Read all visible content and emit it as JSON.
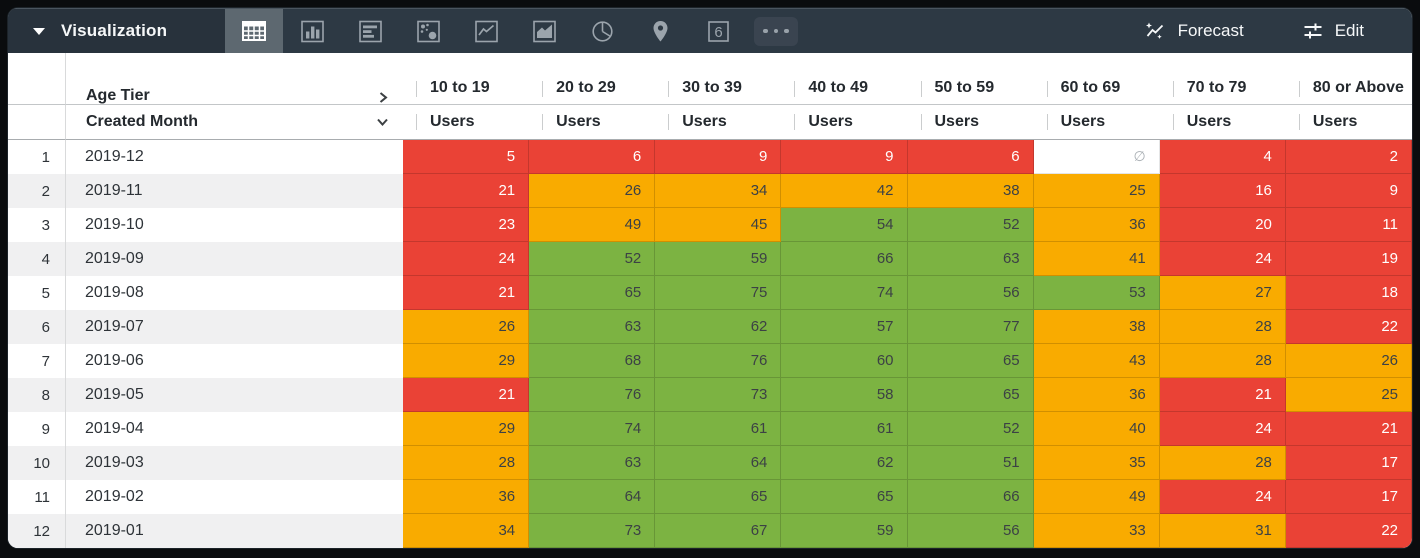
{
  "toolbar": {
    "title": "Visualization",
    "viz_types": [
      {
        "name": "table",
        "active": true
      },
      {
        "name": "bar",
        "active": false
      },
      {
        "name": "row-bar",
        "active": false
      },
      {
        "name": "scatter",
        "active": false
      },
      {
        "name": "line",
        "active": false
      },
      {
        "name": "area",
        "active": false
      },
      {
        "name": "pie",
        "active": false
      },
      {
        "name": "map",
        "active": false
      },
      {
        "name": "single-value",
        "active": false
      },
      {
        "name": "more",
        "active": false
      }
    ],
    "single_value_glyph": "6",
    "forecast_label": "Forecast",
    "edit_label": "Edit"
  },
  "table": {
    "pivot_field": "Age Tier",
    "row_field": "Created Month",
    "measure_label": "Users",
    "columns": [
      "10 to 19",
      "20 to 29",
      "30 to 39",
      "40 to 49",
      "50 to 59",
      "60 to 69",
      "70 to 79",
      "80 or Above"
    ],
    "null_symbol": "∅",
    "colors": {
      "red": "#EA4236",
      "orange": "#F9AB00",
      "green": "#7CB342",
      "null": "#FFFFFF"
    },
    "rows": [
      {
        "index": 1,
        "month": "2019-12",
        "cells": [
          {
            "v": "5",
            "c": "red"
          },
          {
            "v": "6",
            "c": "red"
          },
          {
            "v": "9",
            "c": "red"
          },
          {
            "v": "9",
            "c": "red"
          },
          {
            "v": "6",
            "c": "red"
          },
          {
            "v": null,
            "c": "null"
          },
          {
            "v": "4",
            "c": "red"
          },
          {
            "v": "2",
            "c": "red"
          }
        ]
      },
      {
        "index": 2,
        "month": "2019-11",
        "cells": [
          {
            "v": "21",
            "c": "red"
          },
          {
            "v": "26",
            "c": "orange"
          },
          {
            "v": "34",
            "c": "orange"
          },
          {
            "v": "42",
            "c": "orange"
          },
          {
            "v": "38",
            "c": "orange"
          },
          {
            "v": "25",
            "c": "orange"
          },
          {
            "v": "16",
            "c": "red"
          },
          {
            "v": "9",
            "c": "red"
          }
        ]
      },
      {
        "index": 3,
        "month": "2019-10",
        "cells": [
          {
            "v": "23",
            "c": "red"
          },
          {
            "v": "49",
            "c": "orange"
          },
          {
            "v": "45",
            "c": "orange"
          },
          {
            "v": "54",
            "c": "green"
          },
          {
            "v": "52",
            "c": "green"
          },
          {
            "v": "36",
            "c": "orange"
          },
          {
            "v": "20",
            "c": "red"
          },
          {
            "v": "11",
            "c": "red"
          }
        ]
      },
      {
        "index": 4,
        "month": "2019-09",
        "cells": [
          {
            "v": "24",
            "c": "red"
          },
          {
            "v": "52",
            "c": "green"
          },
          {
            "v": "59",
            "c": "green"
          },
          {
            "v": "66",
            "c": "green"
          },
          {
            "v": "63",
            "c": "green"
          },
          {
            "v": "41",
            "c": "orange"
          },
          {
            "v": "24",
            "c": "red"
          },
          {
            "v": "19",
            "c": "red"
          }
        ]
      },
      {
        "index": 5,
        "month": "2019-08",
        "cells": [
          {
            "v": "21",
            "c": "red"
          },
          {
            "v": "65",
            "c": "green"
          },
          {
            "v": "75",
            "c": "green"
          },
          {
            "v": "74",
            "c": "green"
          },
          {
            "v": "56",
            "c": "green"
          },
          {
            "v": "53",
            "c": "green"
          },
          {
            "v": "27",
            "c": "orange"
          },
          {
            "v": "18",
            "c": "red"
          }
        ]
      },
      {
        "index": 6,
        "month": "2019-07",
        "cells": [
          {
            "v": "26",
            "c": "orange"
          },
          {
            "v": "63",
            "c": "green"
          },
          {
            "v": "62",
            "c": "green"
          },
          {
            "v": "57",
            "c": "green"
          },
          {
            "v": "77",
            "c": "green"
          },
          {
            "v": "38",
            "c": "orange"
          },
          {
            "v": "28",
            "c": "orange"
          },
          {
            "v": "22",
            "c": "red"
          }
        ]
      },
      {
        "index": 7,
        "month": "2019-06",
        "cells": [
          {
            "v": "29",
            "c": "orange"
          },
          {
            "v": "68",
            "c": "green"
          },
          {
            "v": "76",
            "c": "green"
          },
          {
            "v": "60",
            "c": "green"
          },
          {
            "v": "65",
            "c": "green"
          },
          {
            "v": "43",
            "c": "orange"
          },
          {
            "v": "28",
            "c": "orange"
          },
          {
            "v": "26",
            "c": "orange"
          }
        ]
      },
      {
        "index": 8,
        "month": "2019-05",
        "cells": [
          {
            "v": "21",
            "c": "red"
          },
          {
            "v": "76",
            "c": "green"
          },
          {
            "v": "73",
            "c": "green"
          },
          {
            "v": "58",
            "c": "green"
          },
          {
            "v": "65",
            "c": "green"
          },
          {
            "v": "36",
            "c": "orange"
          },
          {
            "v": "21",
            "c": "red"
          },
          {
            "v": "25",
            "c": "orange"
          }
        ]
      },
      {
        "index": 9,
        "month": "2019-04",
        "cells": [
          {
            "v": "29",
            "c": "orange"
          },
          {
            "v": "74",
            "c": "green"
          },
          {
            "v": "61",
            "c": "green"
          },
          {
            "v": "61",
            "c": "green"
          },
          {
            "v": "52",
            "c": "green"
          },
          {
            "v": "40",
            "c": "orange"
          },
          {
            "v": "24",
            "c": "red"
          },
          {
            "v": "21",
            "c": "red"
          }
        ]
      },
      {
        "index": 10,
        "month": "2019-03",
        "cells": [
          {
            "v": "28",
            "c": "orange"
          },
          {
            "v": "63",
            "c": "green"
          },
          {
            "v": "64",
            "c": "green"
          },
          {
            "v": "62",
            "c": "green"
          },
          {
            "v": "51",
            "c": "green"
          },
          {
            "v": "35",
            "c": "orange"
          },
          {
            "v": "28",
            "c": "orange"
          },
          {
            "v": "17",
            "c": "red"
          }
        ]
      },
      {
        "index": 11,
        "month": "2019-02",
        "cells": [
          {
            "v": "36",
            "c": "orange"
          },
          {
            "v": "64",
            "c": "green"
          },
          {
            "v": "65",
            "c": "green"
          },
          {
            "v": "65",
            "c": "green"
          },
          {
            "v": "66",
            "c": "green"
          },
          {
            "v": "49",
            "c": "orange"
          },
          {
            "v": "24",
            "c": "red"
          },
          {
            "v": "17",
            "c": "red"
          }
        ]
      },
      {
        "index": 12,
        "month": "2019-01",
        "cells": [
          {
            "v": "34",
            "c": "orange"
          },
          {
            "v": "73",
            "c": "green"
          },
          {
            "v": "67",
            "c": "green"
          },
          {
            "v": "59",
            "c": "green"
          },
          {
            "v": "56",
            "c": "green"
          },
          {
            "v": "33",
            "c": "orange"
          },
          {
            "v": "31",
            "c": "orange"
          },
          {
            "v": "22",
            "c": "red"
          }
        ]
      }
    ]
  }
}
